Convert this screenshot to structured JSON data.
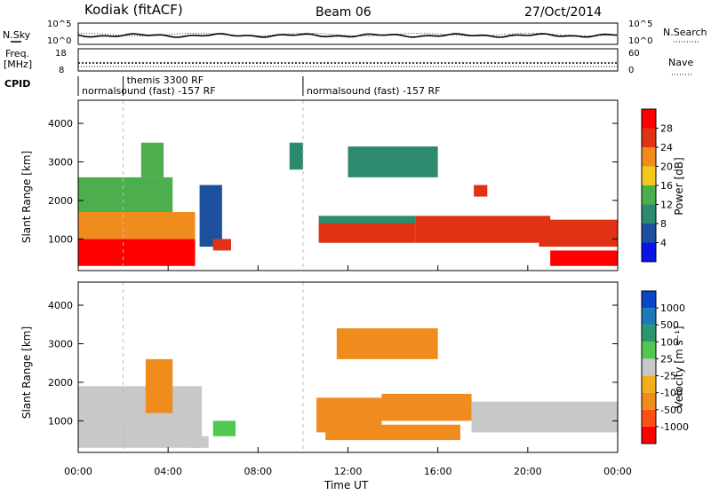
{
  "header": {
    "station": "Kodiak (fitACF)",
    "beam": "Beam 06",
    "date": "27/Oct/2014"
  },
  "side_labels": {
    "nsky": "N.Sky",
    "freq": "Freq.",
    "freq_unit": "[MHz]",
    "cpid": "CPID",
    "nsearch": "N.Search",
    "nave": "Nave"
  },
  "strip_axes": {
    "nsky_ticks": [
      "10^5",
      "10^0"
    ],
    "nsearch_ticks": [
      "10^5",
      "10^0"
    ],
    "freq_ticks": [
      "18",
      "8"
    ],
    "nave_ticks": [
      "60",
      "0"
    ]
  },
  "cpid": {
    "segments": [
      {
        "label": "normalsound (fast) -157 RF",
        "start_h": 0.0,
        "end_h": 10.0
      },
      {
        "label": "themis 3300 RF",
        "start_h": 2.0,
        "end_h": 2.2
      },
      {
        "label": "normalsound (fast) -157 RF",
        "start_h": 10.0,
        "end_h": 24.0
      }
    ]
  },
  "x_axis": {
    "label": "Time UT",
    "ticks": [
      "00:00",
      "04:00",
      "08:00",
      "12:00",
      "16:00",
      "20:00",
      "00:00"
    ],
    "range_hours": [
      0,
      24
    ]
  },
  "y_axis": {
    "label": "Slant Range [km]",
    "ticks": [
      "1000",
      "2000",
      "3000",
      "4000"
    ],
    "range_km": [
      180,
      4600
    ]
  },
  "colorbars": {
    "power": {
      "label": "Power [dB]",
      "ticks": [
        "4",
        "8",
        "12",
        "16",
        "20",
        "24",
        "28"
      ],
      "colors": [
        "#0a14e6",
        "#1e50a0",
        "#2e8a6e",
        "#4cae4c",
        "#f2c81e",
        "#f08c1e",
        "#e03214",
        "#ff0000"
      ]
    },
    "velocity": {
      "label": "Velocity [m s⁻¹]",
      "ticks": [
        "1000",
        "500",
        "100",
        "25",
        "-25",
        "-100",
        "-500",
        "-1000"
      ],
      "colors": [
        "#0a46c8",
        "#1e7ab4",
        "#2e966e",
        "#50c850",
        "#c8c8c8",
        "#f0b01e",
        "#f08c1e",
        "#ff5014",
        "#ff0000"
      ]
    }
  },
  "chart_data": [
    {
      "type": "heatmap",
      "name": "Power",
      "x_unit": "hours UT",
      "y_unit": "km",
      "z_unit": "dB",
      "regions": [
        {
          "x": [
            0.0,
            5.2
          ],
          "y": [
            300,
            1000
          ],
          "z": 28
        },
        {
          "x": [
            0.0,
            5.2
          ],
          "y": [
            1000,
            1700
          ],
          "z": 20
        },
        {
          "x": [
            0.0,
            4.2
          ],
          "y": [
            1700,
            2600
          ],
          "z": 12
        },
        {
          "x": [
            2.8,
            3.8
          ],
          "y": [
            2600,
            3500
          ],
          "z": 12
        },
        {
          "x": [
            5.4,
            6.4
          ],
          "y": [
            800,
            2400
          ],
          "z": 6
        },
        {
          "x": [
            6.0,
            6.8
          ],
          "y": [
            700,
            1000
          ],
          "z": 24
        },
        {
          "x": [
            9.4,
            10.0
          ],
          "y": [
            2800,
            3500
          ],
          "z": 8
        },
        {
          "x": [
            10.7,
            15.0
          ],
          "y": [
            900,
            1400
          ],
          "z": 24
        },
        {
          "x": [
            10.7,
            15.0
          ],
          "y": [
            1400,
            1600
          ],
          "z": 8
        },
        {
          "x": [
            15.0,
            21.0
          ],
          "y": [
            900,
            1600
          ],
          "z": 24
        },
        {
          "x": [
            12.0,
            16.0
          ],
          "y": [
            2600,
            3400
          ],
          "z": 8
        },
        {
          "x": [
            17.6,
            18.2
          ],
          "y": [
            2100,
            2400
          ],
          "z": 24
        },
        {
          "x": [
            21.0,
            24.0
          ],
          "y": [
            300,
            700
          ],
          "z": 28
        },
        {
          "x": [
            20.5,
            24.0
          ],
          "y": [
            800,
            1500
          ],
          "z": 24
        }
      ]
    },
    {
      "type": "heatmap",
      "name": "Velocity",
      "x_unit": "hours UT",
      "y_unit": "km",
      "z_unit": "m s-1",
      "regions": [
        {
          "x": [
            0.0,
            5.5
          ],
          "y": [
            300,
            1900
          ],
          "z": 0
        },
        {
          "x": [
            3.0,
            4.2
          ],
          "y": [
            1200,
            2600
          ],
          "z": -100
        },
        {
          "x": [
            5.0,
            5.8
          ],
          "y": [
            300,
            600
          ],
          "z": 0
        },
        {
          "x": [
            6.0,
            7.0
          ],
          "y": [
            600,
            1000
          ],
          "z": 100
        },
        {
          "x": [
            10.6,
            13.5
          ],
          "y": [
            700,
            1600
          ],
          "z": -200
        },
        {
          "x": [
            13.5,
            17.5
          ],
          "y": [
            1000,
            1700
          ],
          "z": -300
        },
        {
          "x": [
            11.0,
            17.0
          ],
          "y": [
            500,
            900
          ],
          "z": -100
        },
        {
          "x": [
            17.5,
            24.0
          ],
          "y": [
            700,
            1500
          ],
          "z": 0
        },
        {
          "x": [
            11.5,
            16.0
          ],
          "y": [
            2600,
            3400
          ],
          "z": -100
        }
      ]
    }
  ]
}
